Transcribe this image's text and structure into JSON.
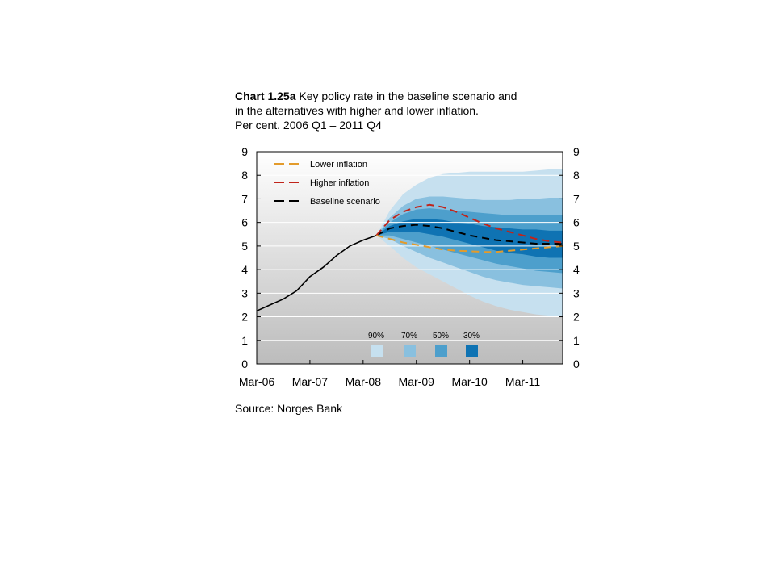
{
  "title": {
    "prefix": "Chart 1.25a",
    "line1_rest": "Key policy rate in the baseline scenario and",
    "line2": "in the alternatives with higher and lower inflation.",
    "line3": "Per cent. 2006 Q1 – 2011 Q4"
  },
  "source": "Source: Norges Bank",
  "chart_data": {
    "type": "line",
    "ylim": [
      0,
      9
    ],
    "yticks": [
      "0",
      "1",
      "2",
      "3",
      "4",
      "5",
      "6",
      "7",
      "8",
      "9"
    ],
    "xlim": [
      0,
      5.75
    ],
    "xticks": [
      "Mar-06",
      "Mar-07",
      "Mar-08",
      "Mar-09",
      "Mar-10",
      "Mar-11"
    ],
    "legend": {
      "placement": "top-left",
      "entries": [
        "Lower inflation",
        "Higher inflation",
        "Baseline scenario"
      ]
    },
    "fan_legend": {
      "labels": [
        "90%",
        "70%",
        "50%",
        "30%"
      ],
      "colors": [
        "#c6e0ef",
        "#89c0df",
        "#4d9fcc",
        "#0f73b3"
      ]
    },
    "colors": {
      "history": "#000000",
      "lower": "#e39b2b",
      "higher": "#c0241b",
      "baseline": "#000000",
      "background_top": "#ffffff",
      "background_bottom": "#bcbcbc"
    },
    "history": {
      "x": [
        0,
        0.25,
        0.5,
        0.75,
        1.0,
        1.25,
        1.5,
        1.75,
        2.0,
        2.25
      ],
      "y": [
        2.25,
        2.5,
        2.75,
        3.1,
        3.7,
        4.1,
        4.6,
        5.0,
        5.25,
        5.45
      ]
    },
    "series": [
      {
        "name": "Baseline scenario",
        "x": [
          2.25,
          2.5,
          2.75,
          3.0,
          3.25,
          3.5,
          3.75,
          4.0,
          4.25,
          4.5,
          4.75,
          5.0,
          5.25,
          5.5,
          5.75
        ],
        "y": [
          5.45,
          5.75,
          5.85,
          5.9,
          5.85,
          5.75,
          5.6,
          5.45,
          5.35,
          5.25,
          5.2,
          5.15,
          5.1,
          5.1,
          5.1
        ]
      },
      {
        "name": "Higher inflation",
        "x": [
          2.25,
          2.5,
          2.75,
          3.0,
          3.25,
          3.5,
          3.75,
          4.0,
          4.25,
          4.5,
          4.75,
          5.0,
          5.25,
          5.5,
          5.75
        ],
        "y": [
          5.45,
          6.1,
          6.45,
          6.65,
          6.75,
          6.65,
          6.45,
          6.2,
          5.95,
          5.75,
          5.6,
          5.45,
          5.3,
          5.2,
          5.15
        ]
      },
      {
        "name": "Lower inflation",
        "x": [
          2.25,
          2.5,
          2.75,
          3.0,
          3.25,
          3.5,
          3.75,
          4.0,
          4.25,
          4.5,
          4.75,
          5.0,
          5.25,
          5.5,
          5.75
        ],
        "y": [
          5.45,
          5.3,
          5.15,
          5.05,
          4.95,
          4.85,
          4.8,
          4.78,
          4.75,
          4.75,
          4.8,
          4.85,
          4.9,
          4.95,
          5.0
        ]
      }
    ],
    "fan": {
      "x": [
        2.25,
        2.5,
        2.75,
        3.0,
        3.25,
        3.5,
        3.75,
        4.0,
        4.25,
        4.5,
        4.75,
        5.0,
        5.25,
        5.5,
        5.75
      ],
      "band90": {
        "upper": [
          5.45,
          6.5,
          7.2,
          7.6,
          7.9,
          8.05,
          8.1,
          8.15,
          8.15,
          8.15,
          8.15,
          8.15,
          8.2,
          8.25,
          8.25
        ],
        "lower": [
          5.45,
          5.0,
          4.5,
          4.1,
          3.8,
          3.5,
          3.2,
          2.9,
          2.65,
          2.45,
          2.3,
          2.2,
          2.1,
          2.05,
          2.0
        ]
      },
      "band70": {
        "upper": [
          5.45,
          6.2,
          6.7,
          7.0,
          7.1,
          7.1,
          7.05,
          7.0,
          6.95,
          6.95,
          6.95,
          7.0,
          7.0,
          7.05,
          7.05
        ],
        "lower": [
          5.45,
          5.3,
          5.0,
          4.75,
          4.5,
          4.3,
          4.1,
          3.9,
          3.7,
          3.55,
          3.45,
          3.35,
          3.3,
          3.25,
          3.2
        ]
      },
      "band50": {
        "upper": [
          5.45,
          6.0,
          6.35,
          6.55,
          6.6,
          6.55,
          6.5,
          6.45,
          6.4,
          6.35,
          6.3,
          6.3,
          6.3,
          6.3,
          6.3
        ],
        "lower": [
          5.45,
          5.45,
          5.3,
          5.15,
          5.0,
          4.85,
          4.7,
          4.55,
          4.4,
          4.25,
          4.15,
          4.05,
          3.95,
          3.9,
          3.85
        ]
      },
      "band30": {
        "upper": [
          5.45,
          5.85,
          6.05,
          6.15,
          6.15,
          6.1,
          6.0,
          5.95,
          5.85,
          5.8,
          5.75,
          5.7,
          5.7,
          5.65,
          5.65
        ],
        "lower": [
          5.45,
          5.6,
          5.6,
          5.6,
          5.5,
          5.4,
          5.25,
          5.1,
          4.95,
          4.8,
          4.7,
          4.65,
          4.55,
          4.5,
          4.5
        ]
      }
    }
  }
}
